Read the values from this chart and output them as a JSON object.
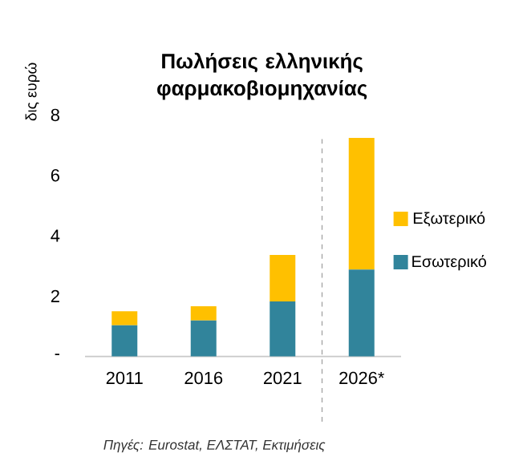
{
  "chart_data": {
    "type": "bar",
    "title": "Πωλήσεις ελληνικής φαρμακοβιομηχανίας",
    "ylabel": "δις ευρώ",
    "categories": [
      "2011",
      "2016",
      "2021",
      "2026*"
    ],
    "series": [
      {
        "name": "Εσωτερικό",
        "color": "#31849b",
        "values": [
          1.03,
          1.19,
          1.82,
          2.88
        ]
      },
      {
        "name": "Εξωτερικό",
        "color": "#ffc000",
        "values": [
          0.47,
          0.47,
          1.54,
          4.36
        ]
      }
    ],
    "stacked": true,
    "legend": "right",
    "ylim": [
      0,
      8
    ],
    "yticks": [
      {
        "value": 0,
        "label": "-"
      },
      2,
      4,
      6,
      8
    ],
    "annotations": [
      "Πηγές: Eurostat, ΕΛΣΤΑΤ, Εκτιμήσεις"
    ]
  }
}
